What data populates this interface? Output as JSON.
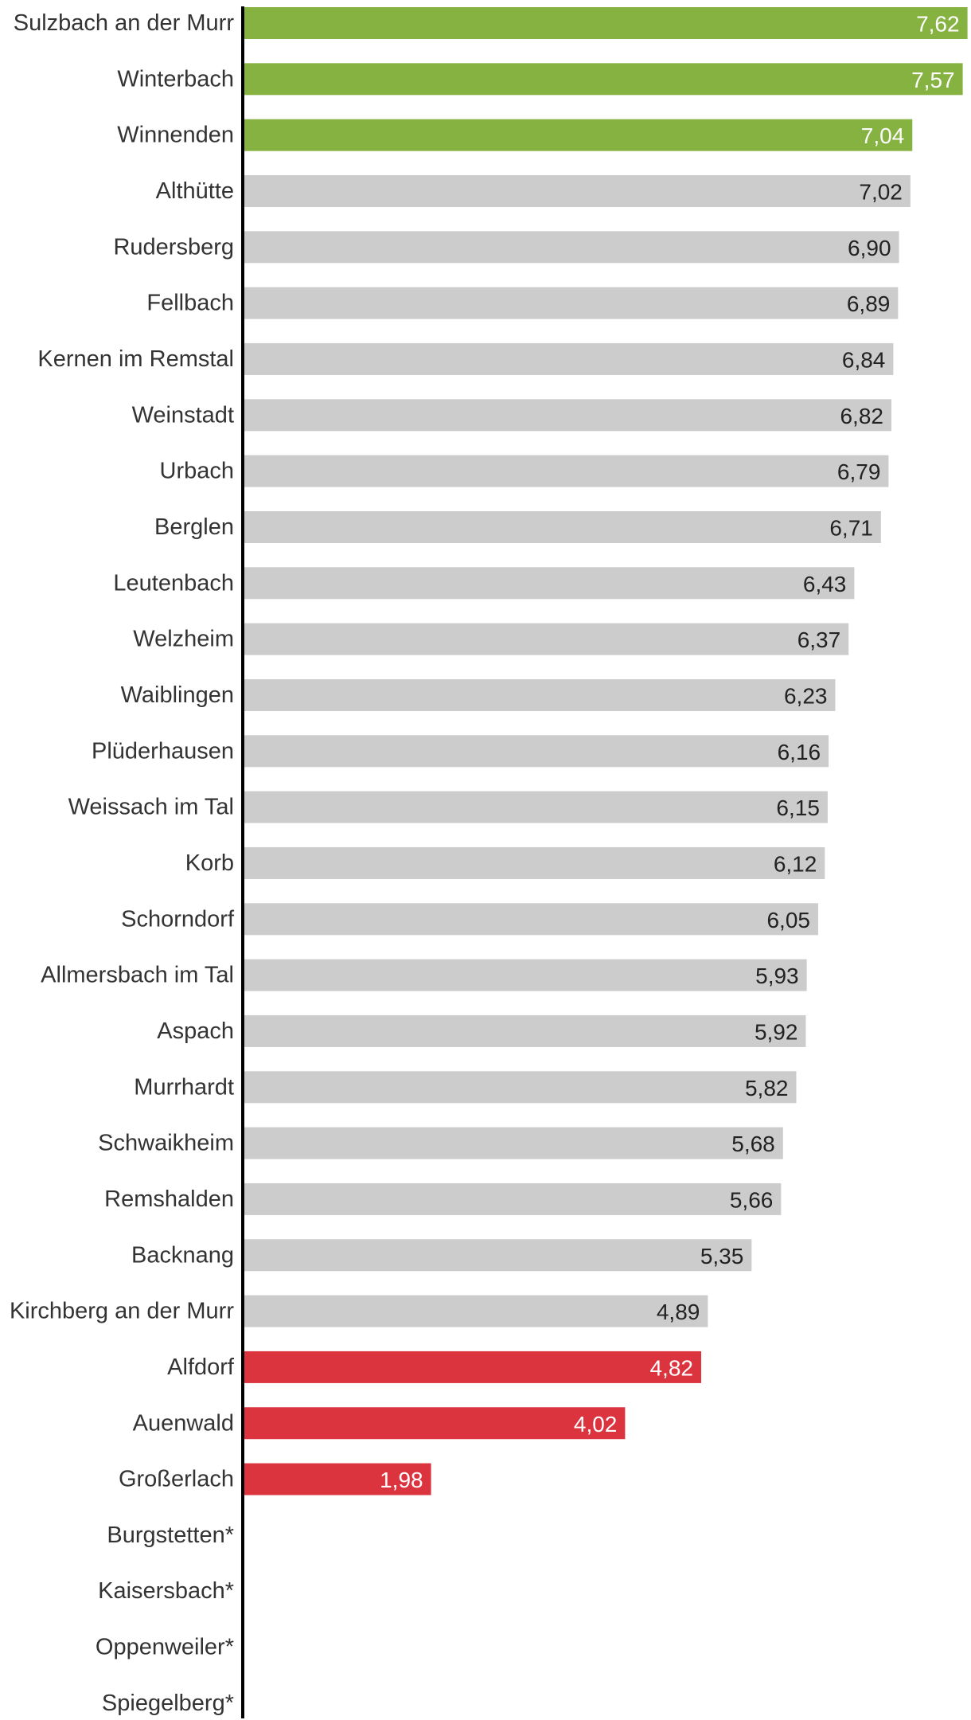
{
  "chart_data": {
    "type": "bar",
    "orientation": "horizontal",
    "title": "",
    "xlabel": "",
    "ylabel": "",
    "xlim": [
      0,
      7.9
    ],
    "grid": false,
    "legend": "none",
    "colors": {
      "top": "#86b242",
      "middle": "#cccccc",
      "bottom": "#dc343f",
      "axis": "#000000",
      "label_dark": "#222222",
      "label_light": "#ffffff",
      "category_text": "#333333"
    },
    "categories": [
      "Sulzbach an der Murr",
      "Winterbach",
      "Winnenden",
      "Althütte",
      "Rudersberg",
      "Fellbach",
      "Kernen im Remstal",
      "Weinstadt",
      "Urbach",
      "Berglen",
      "Leutenbach",
      "Welzheim",
      "Waiblingen",
      "Plüderhausen",
      "Weissach im Tal",
      "Korb",
      "Schorndorf",
      "Allmersbach im Tal",
      "Aspach",
      "Murrhardt",
      "Schwaikheim",
      "Remshalden",
      "Backnang",
      "Kirchberg an der Murr",
      "Alfdorf",
      "Auenwald",
      "Großerlach",
      "Burgstetten*",
      "Kaisersbach*",
      "Oppenweiler*",
      "Spiegelberg*"
    ],
    "values": [
      7.62,
      7.57,
      7.04,
      7.02,
      6.9,
      6.89,
      6.84,
      6.82,
      6.79,
      6.71,
      6.43,
      6.37,
      6.23,
      6.16,
      6.15,
      6.12,
      6.05,
      5.93,
      5.92,
      5.82,
      5.68,
      5.66,
      5.35,
      4.89,
      4.82,
      4.02,
      1.98,
      null,
      null,
      null,
      null
    ],
    "value_labels": [
      "7,62",
      "7,57",
      "7,04",
      "7,02",
      "6,90",
      "6,89",
      "6,84",
      "6,82",
      "6,79",
      "6,71",
      "6,43",
      "6,37",
      "6,23",
      "6,16",
      "6,15",
      "6,12",
      "6,05",
      "5,93",
      "5,92",
      "5,82",
      "5,68",
      "5,66",
      "5,35",
      "4,89",
      "4,82",
      "4,02",
      "1,98",
      "",
      "",
      "",
      ""
    ],
    "groups": [
      "top",
      "top",
      "top",
      "middle",
      "middle",
      "middle",
      "middle",
      "middle",
      "middle",
      "middle",
      "middle",
      "middle",
      "middle",
      "middle",
      "middle",
      "middle",
      "middle",
      "middle",
      "middle",
      "middle",
      "middle",
      "middle",
      "middle",
      "middle",
      "bottom",
      "bottom",
      "bottom",
      "none",
      "none",
      "none",
      "none"
    ]
  }
}
